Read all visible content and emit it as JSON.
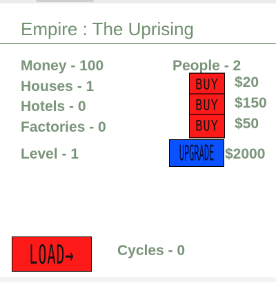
{
  "game": {
    "title": "Empire : The Uprising"
  },
  "stats": {
    "money": "Money - 100",
    "people": "People - 2",
    "houses": "Houses - 1",
    "hotels": "Hotels - 0",
    "factories": "Factories - 0",
    "level": "Level - 1",
    "cycles": "Cycles - 0"
  },
  "shop": {
    "house": {
      "button_label": "BUY",
      "price": "$20"
    },
    "hotel": {
      "button_label": "BUY",
      "price": "$150"
    },
    "factory": {
      "button_label": "BUY",
      "price": "$50"
    },
    "upgrade": {
      "button_label": "UPGRADE",
      "price": "$2000"
    }
  },
  "load": {
    "button_label": "LOAD→"
  },
  "colors": {
    "text": "#7a947a",
    "title": "#6f8f6f",
    "divider": "#3c7a3c",
    "buy_button": "#ff1a1a",
    "upgrade_button": "#0a52ff",
    "load_button": "#ff1a1a"
  }
}
